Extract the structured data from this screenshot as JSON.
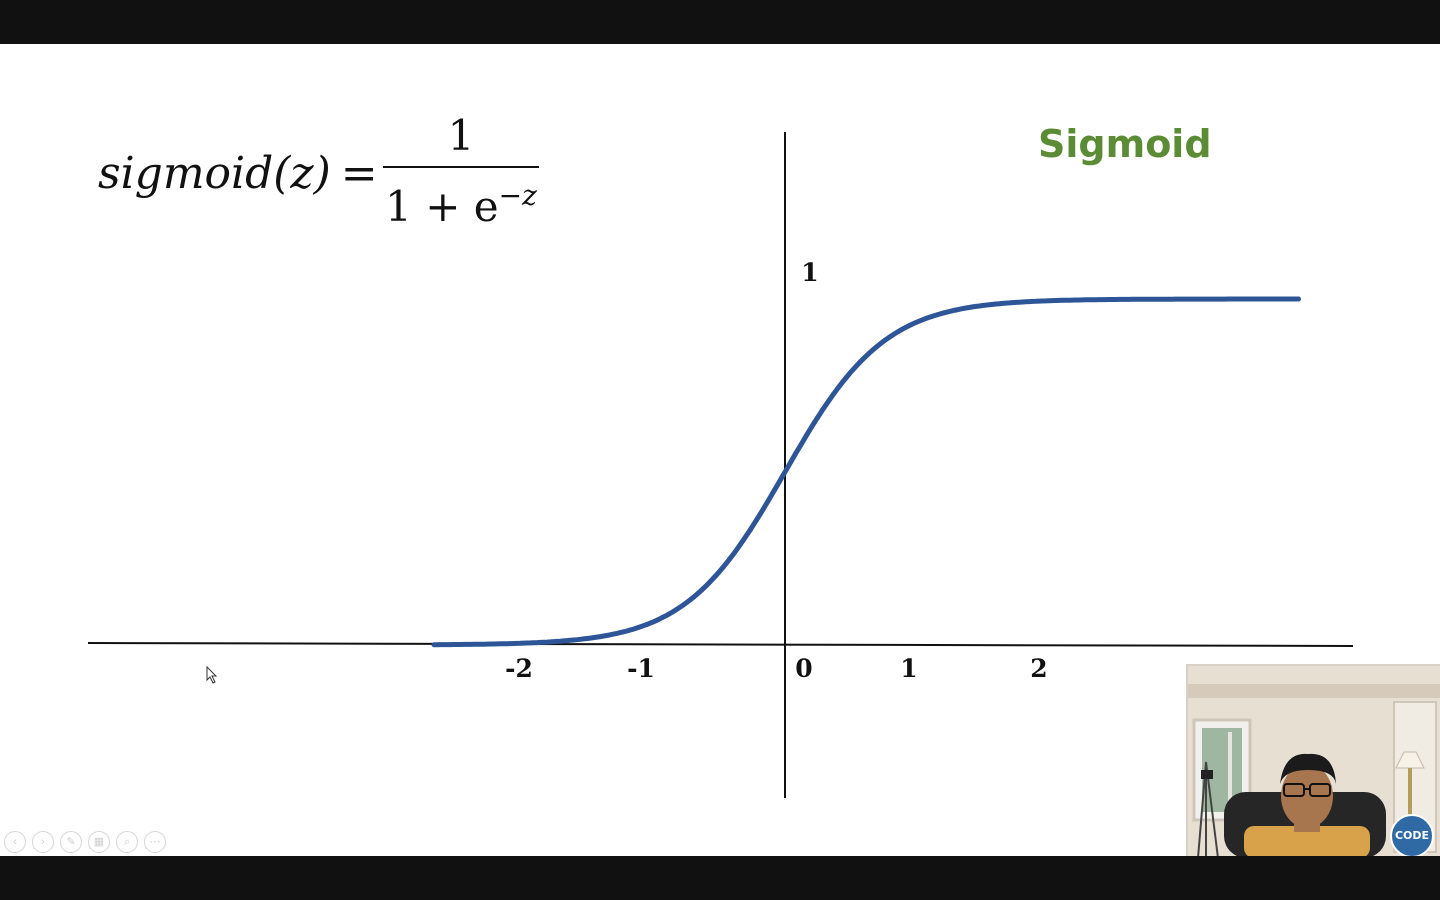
{
  "slide": {
    "formula": {
      "lhs": "sigmoid(z)",
      "equals": "=",
      "numerator": "1",
      "denominator_base": "1 + e",
      "denominator_exponent": "−z"
    },
    "title": "Sigmoid",
    "title_color": "#5b8b34",
    "curve_color": "#2e5597"
  },
  "chart_data": {
    "type": "line",
    "title": "Sigmoid",
    "xlabel": "",
    "ylabel": "",
    "x_tick_labels": [
      "-2",
      "-1",
      "0",
      "1",
      "2"
    ],
    "x_ticks": [
      -2,
      -1,
      0,
      1,
      2
    ],
    "y_tick_labels": [
      "1"
    ],
    "y_ticks": [
      1
    ],
    "xlim": [
      -5.7,
      4.7
    ],
    "ylim": [
      0,
      1
    ],
    "grid": false,
    "series": [
      {
        "function": "1/(1+e^-z)",
        "x_range": [
          -2.7,
          3.95
        ]
      }
    ]
  },
  "webcam": {
    "logo_text": "CODE"
  },
  "controls": [
    "prev",
    "next",
    "pen",
    "slides",
    "zoom",
    "more"
  ]
}
